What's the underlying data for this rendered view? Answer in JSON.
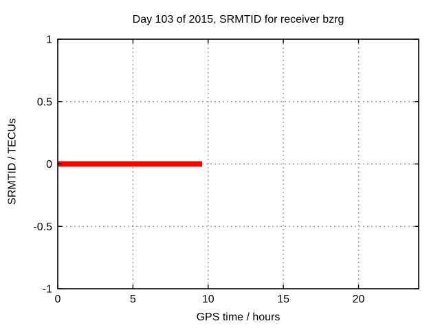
{
  "figure": {
    "background": "#ffffff"
  },
  "chart_data": {
    "type": "line",
    "title": "Day 103 of 2015, SRMTID for receiver bzrg",
    "xlabel": "GPS time / hours",
    "ylabel": "SRMTID / TECUs",
    "xlim": [
      0,
      24
    ],
    "ylim": [
      -1,
      1
    ],
    "xticks": [
      0,
      5,
      10,
      15,
      20
    ],
    "yticks": [
      -1,
      -0.5,
      0,
      0.5,
      1
    ],
    "grid": true,
    "legend": "none",
    "colors": {
      "series": "#ff0000",
      "grid": "#9b9b9b",
      "axis": "#000000",
      "text": "#000000",
      "background": "#ffffff"
    },
    "series": [
      {
        "name": "SRMTID",
        "color": "#ff0000",
        "linewidth": 8,
        "points": [
          [
            0,
            0
          ],
          [
            9.6,
            0
          ]
        ]
      }
    ]
  }
}
